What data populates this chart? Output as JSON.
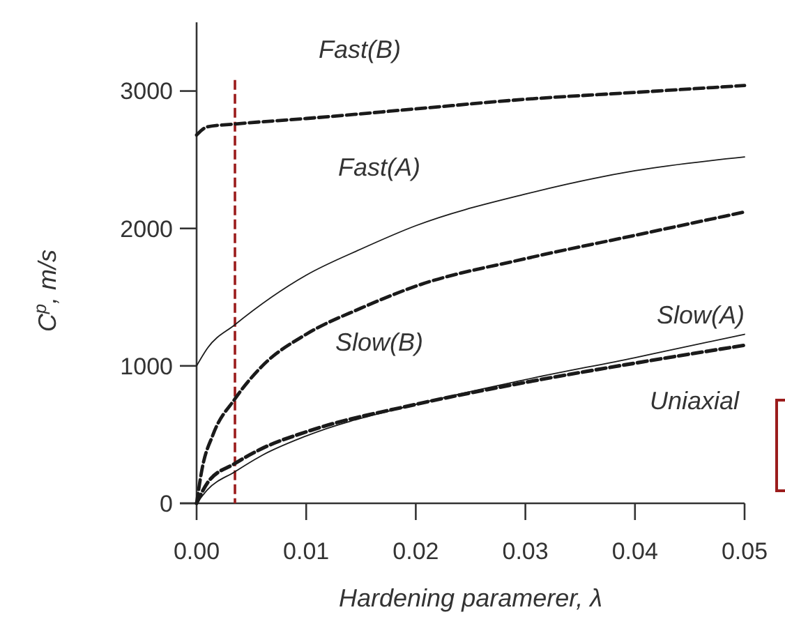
{
  "chart_data": {
    "type": "line",
    "xlabel": "Hardening paramerer, λ",
    "ylabel": "C$^{p}$, m/s",
    "xlim": [
      0,
      0.05
    ],
    "xticks": [
      {
        "value": 0,
        "label": "0.00"
      },
      0.01,
      0.02,
      0.03,
      0.04,
      0.05
    ],
    "ylim": [
      0,
      3500
    ],
    "yticks": [
      0,
      1000,
      2000,
      3000
    ],
    "grid": false,
    "marker": "none",
    "series": [
      {
        "name": "Fast(B)",
        "color": "#1a1a1a",
        "line_style": "dashed",
        "x": [
          0,
          0.001,
          0.0035,
          0.01,
          0.02,
          0.03,
          0.04,
          0.05
        ],
        "values": [
          2680,
          2740,
          2760,
          2800,
          2870,
          2940,
          2990,
          3040
        ]
      },
      {
        "name": "Fast(A)",
        "color": "#1a1a1a",
        "line_style": "solid",
        "x": [
          0,
          0.001,
          0.0035,
          0.01,
          0.015,
          0.02,
          0.03,
          0.04,
          0.05
        ],
        "values": [
          1000,
          1130,
          1300,
          1660,
          1850,
          2020,
          2250,
          2420,
          2520
        ]
      },
      {
        "name": "Slow(B)",
        "color": "#1a1a1a",
        "line_style": "dashed",
        "x": [
          0,
          0.0005,
          0.0015,
          0.0035,
          0.006,
          0.01,
          0.015,
          0.02,
          0.03,
          0.04,
          0.05
        ],
        "values": [
          0,
          250,
          500,
          760,
          1000,
          1230,
          1420,
          1580,
          1780,
          1950,
          2120
        ]
      },
      {
        "name": "Slow(A)",
        "color": "#1a1a1a",
        "line_style": "solid",
        "x": [
          0,
          0.001,
          0.0035,
          0.006,
          0.01,
          0.02,
          0.03,
          0.04,
          0.05
        ],
        "values": [
          0,
          100,
          230,
          350,
          490,
          720,
          900,
          1060,
          1230
        ]
      },
      {
        "name": "Uniaxial",
        "color": "#1a1a1a",
        "line_style": "dashed",
        "x": [
          0,
          0.001,
          0.0035,
          0.006,
          0.01,
          0.02,
          0.03,
          0.04,
          0.05
        ],
        "values": [
          0,
          150,
          290,
          400,
          520,
          720,
          880,
          1020,
          1150
        ]
      }
    ],
    "ref_lines": [
      {
        "axis": "x",
        "value": 0.0035,
        "color": "#9b1c1c",
        "line_style": "dashed"
      }
    ]
  }
}
